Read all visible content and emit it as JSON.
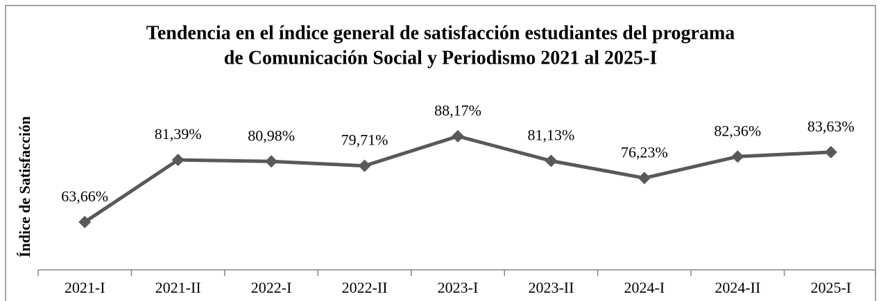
{
  "chart_data": {
    "type": "line",
    "title": [
      "Tendencia en el índice general de satisfacción estudiantes del programa",
      "de Comunicación Social y Periodismo 2021 al 2025-I"
    ],
    "y_label": "Índice de Satisfacción",
    "categories": [
      "2021-I",
      "2021-II",
      "2022-I",
      "2022-II",
      "2023-I",
      "2023-II",
      "2024-I",
      "2024-II",
      "2025-I"
    ],
    "values": [
      63.66,
      81.39,
      80.98,
      79.71,
      88.17,
      81.13,
      76.23,
      82.36,
      83.63
    ],
    "value_labels": [
      "63,66%",
      "81,39%",
      "80,98%",
      "79,71%",
      "88,17%",
      "81,13%",
      "76,23%",
      "82,36%",
      "83,63%"
    ],
    "color": "#595959",
    "ylim": [
      50,
      100
    ]
  }
}
